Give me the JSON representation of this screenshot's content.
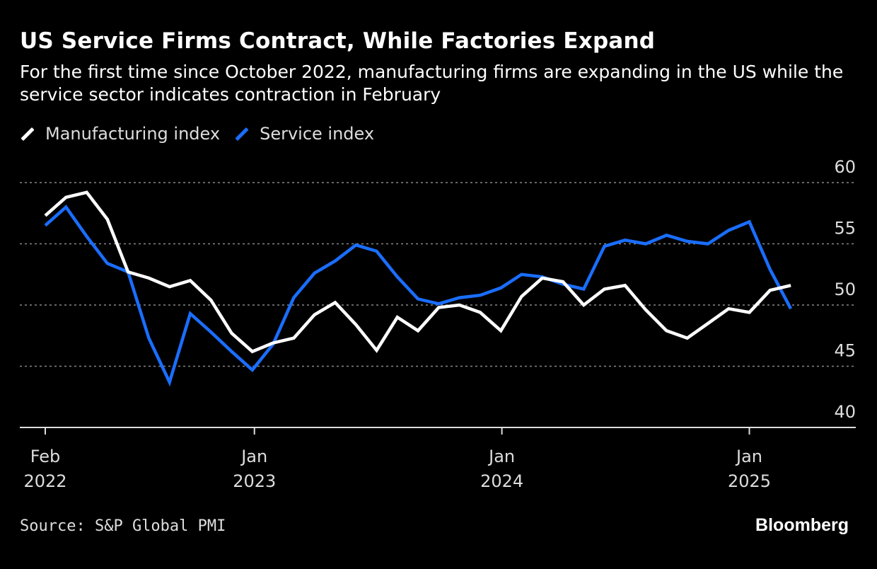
{
  "chart_data": {
    "type": "line",
    "title": "US Service Firms Contract, While Factories Expand",
    "subtitle": "For the first time since October 2022, manufacturing firms are expanding in the US while the service sector indicates contraction in February",
    "x": [
      "2022-02",
      "2022-03",
      "2022-04",
      "2022-05",
      "2022-06",
      "2022-07",
      "2022-08",
      "2022-09",
      "2022-10",
      "2022-11",
      "2022-12",
      "2023-01",
      "2023-02",
      "2023-03",
      "2023-04",
      "2023-05",
      "2023-06",
      "2023-07",
      "2023-08",
      "2023-09",
      "2023-10",
      "2023-11",
      "2023-12",
      "2024-01",
      "2024-02",
      "2024-03",
      "2024-04",
      "2024-05",
      "2024-06",
      "2024-07",
      "2024-08",
      "2024-09",
      "2024-10",
      "2024-11",
      "2024-12",
      "2025-01",
      "2025-02"
    ],
    "series": [
      {
        "name": "Manufacturing index",
        "color": "#ffffff",
        "values": [
          57.3,
          58.8,
          59.2,
          57.0,
          52.7,
          52.2,
          51.5,
          52.0,
          50.4,
          47.7,
          46.2,
          46.9,
          47.3,
          49.2,
          50.2,
          48.4,
          46.3,
          49.0,
          47.9,
          49.8,
          50.0,
          49.4,
          47.9,
          50.7,
          52.2,
          51.9,
          50.0,
          51.3,
          51.6,
          49.6,
          47.9,
          47.3,
          48.5,
          49.7,
          49.4,
          51.2,
          51.6
        ]
      },
      {
        "name": "Service index",
        "color": "#1a6eff",
        "values": [
          56.5,
          58.0,
          55.6,
          53.4,
          52.7,
          47.3,
          43.7,
          49.3,
          47.8,
          46.2,
          44.7,
          46.8,
          50.6,
          52.6,
          53.6,
          54.9,
          54.4,
          52.3,
          50.5,
          50.1,
          50.6,
          50.8,
          51.4,
          52.5,
          52.3,
          51.7,
          51.3,
          54.8,
          55.3,
          55.0,
          55.7,
          55.2,
          55.0,
          56.1,
          56.8,
          52.9,
          49.7
        ]
      }
    ],
    "ylim": [
      40,
      60
    ],
    "y_ticks": [
      "40",
      "45",
      "50",
      "55",
      "60"
    ],
    "x_ticks": [
      {
        "month": "Feb",
        "year": "2022"
      },
      {
        "month": "Jan",
        "year": "2023"
      },
      {
        "month": "Jan",
        "year": "2024"
      },
      {
        "month": "Jan",
        "year": "2025"
      }
    ],
    "grid": true,
    "legend": "top-left",
    "source": "Source: S&P Global PMI",
    "logo": "Bloomberg"
  }
}
